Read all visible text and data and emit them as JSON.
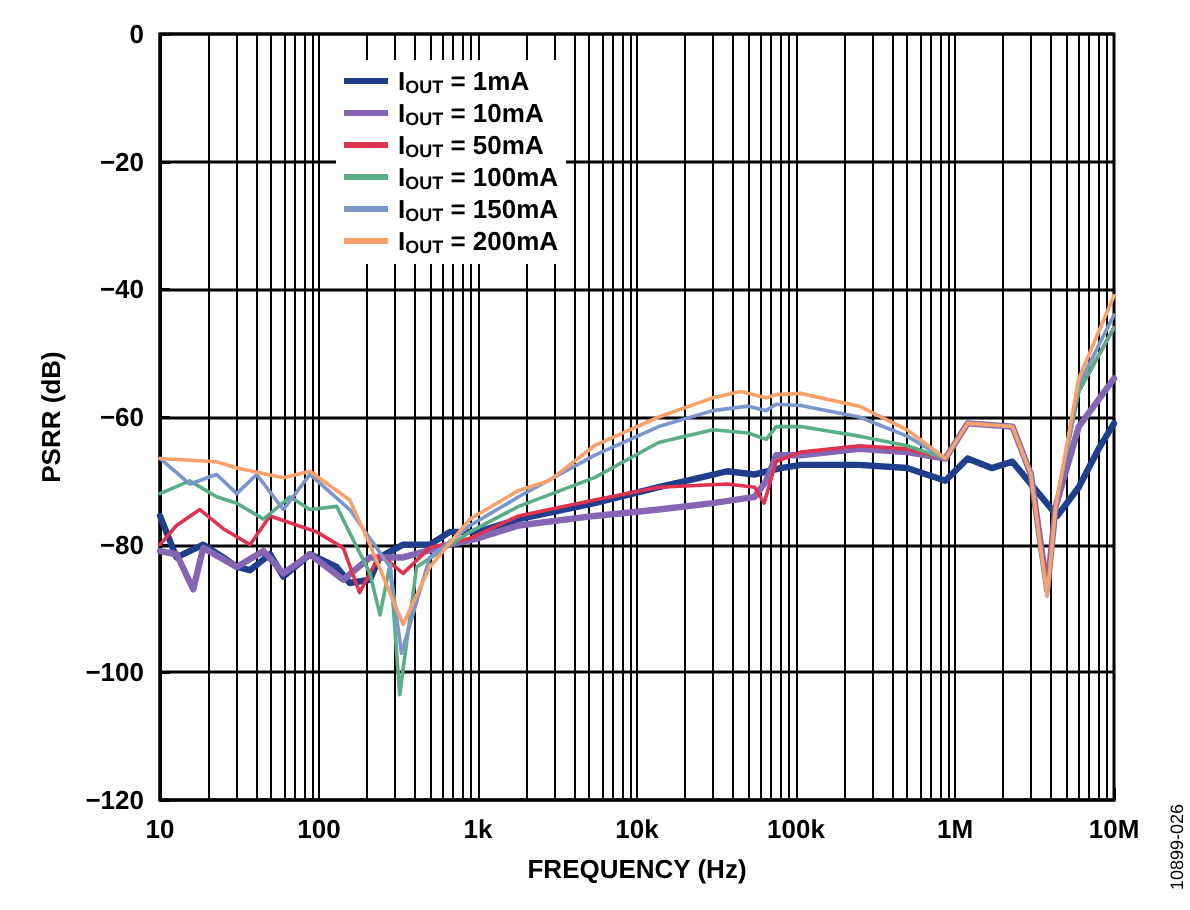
{
  "chart_data": {
    "type": "line",
    "xlabel": "FREQUENCY (Hz)",
    "ylabel": "PSRR (dB)",
    "xlim": [
      10,
      10000000
    ],
    "ylim": [
      -120,
      0
    ],
    "log": "x",
    "grid": true,
    "legend": "top left",
    "marker": "none",
    "line_style": "solid",
    "xticks": [
      {
        "value": 10,
        "label": "10"
      },
      {
        "value": 100,
        "label": "100"
      },
      {
        "value": 1000,
        "label": "1k"
      },
      {
        "value": 10000,
        "label": "10k"
      },
      {
        "value": 100000,
        "label": "100k"
      },
      {
        "value": 1000000,
        "label": "1M"
      },
      {
        "value": 10000000,
        "label": "10M"
      }
    ],
    "yticks": [
      {
        "value": 0,
        "label": "0"
      },
      {
        "value": -20,
        "label": "−20"
      },
      {
        "value": -40,
        "label": "−40"
      },
      {
        "value": -60,
        "label": "−60"
      },
      {
        "value": -80,
        "label": "−80"
      },
      {
        "value": -100,
        "label": "−100"
      },
      {
        "value": -120,
        "label": "−120"
      }
    ],
    "annotations": [
      "10899-026"
    ],
    "series": [
      {
        "name": "I$_{OUT}$ = 1mA",
        "color": "#1f3f8c",
        "x": [
          10,
          12.7,
          18.7,
          25,
          30.4,
          36.8,
          49.2,
          59.7,
          87.7,
          129,
          156,
          209,
          240,
          338,
          497,
          666,
          1000,
          1800,
          5400,
          13700,
          25000,
          37000,
          55000,
          80000,
          107000,
          250000,
          500000,
          870000,
          1200000,
          1700000,
          2300000,
          3000000,
          4400000,
          6000000,
          8000000,
          10000000
        ],
        "values": [
          -75.5,
          -82,
          -80,
          -82,
          -83.5,
          -84,
          -81.5,
          -85,
          -81.5,
          -83.5,
          -86,
          -85.5,
          -82,
          -80,
          -80,
          -78,
          -78,
          -76,
          -73.5,
          -71,
          -69.5,
          -68.5,
          -69,
          -68,
          -67.5,
          -67.5,
          -68,
          -70,
          -66.5,
          -68,
          -67,
          -70.5,
          -75.5,
          -71,
          -65,
          -61
        ]
      },
      {
        "name": "I$_{OUT}$ = 10mA",
        "color": "#8466b5",
        "x": [
          10,
          12.7,
          16.2,
          18.7,
          30.4,
          44.8,
          59.7,
          87.7,
          142,
          209,
          338,
          666,
          1000,
          1800,
          5400,
          13700,
          30000,
          55000,
          65000,
          75000,
          107000,
          250000,
          500000,
          870000,
          1200000,
          2300000,
          3000000,
          3800000,
          4300000,
          6000000,
          10000000
        ],
        "values": [
          -81,
          -81.5,
          -87,
          -80.5,
          -83.5,
          -81,
          -84.5,
          -81.5,
          -85.5,
          -82,
          -82,
          -80,
          -79,
          -77,
          -75.5,
          -74.5,
          -73.5,
          -72.5,
          -70,
          -66,
          -66,
          -65,
          -65.5,
          -66.5,
          -61,
          -61.5,
          -69,
          -87,
          -74,
          -61.5,
          -54
        ]
      },
      {
        "name": "I$_{OUT}$ = 50mA",
        "color": "#e0334f",
        "x": [
          10,
          12.7,
          17.8,
          25,
          36.8,
          49.2,
          96.5,
          142,
          180,
          242,
          338,
          497,
          890,
          1800,
          5400,
          13700,
          37000,
          55000,
          63000,
          75000,
          107000,
          250000,
          500000,
          870000,
          1200000,
          2300000,
          3000000,
          3800000,
          4300000,
          6000000,
          10000000
        ],
        "values": [
          -80,
          -77,
          -74.5,
          -77.5,
          -80,
          -75.5,
          -78,
          -80.5,
          -87.5,
          -81.5,
          -84.5,
          -80.5,
          -79,
          -75.5,
          -73,
          -71,
          -70.5,
          -71,
          -73.5,
          -67,
          -65.5,
          -64.5,
          -65,
          -66.5,
          -61,
          -61.5,
          -69,
          -87,
          -74,
          -56,
          -46
        ]
      },
      {
        "name": "I$_{OUT}$ = 100mA",
        "color": "#5aae86",
        "x": [
          10,
          15.4,
          22.7,
          30.4,
          44.8,
          65.7,
          87.7,
          129,
          209,
          242,
          280,
          322,
          411,
          890,
          1800,
          5400,
          13700,
          30000,
          50000,
          65000,
          75000,
          107000,
          250000,
          500000,
          870000,
          1200000,
          2300000,
          3000000,
          3800000,
          4300000,
          6000000,
          10000000
        ],
        "values": [
          -72,
          -70,
          -72.5,
          -73.5,
          -76,
          -72.5,
          -74.5,
          -74,
          -84.5,
          -91,
          -83,
          -103.5,
          -83.5,
          -78,
          -74,
          -69.5,
          -64,
          -62,
          -62.5,
          -63.5,
          -61.5,
          -61.5,
          -63,
          -64.5,
          -66.5,
          -61,
          -61.5,
          -69,
          -88,
          -74,
          -56,
          -46
        ]
      },
      {
        "name": "I$_{OUT}$ = 150mA",
        "color": "#7b96cc",
        "x": [
          10,
          15.4,
          22.7,
          30.4,
          40.5,
          59.7,
          87.7,
          156,
          280,
          330,
          497,
          890,
          1800,
          5400,
          13700,
          30000,
          50000,
          65000,
          75000,
          107000,
          250000,
          500000,
          870000,
          1200000,
          2300000,
          3000000,
          3800000,
          4300000,
          6000000,
          10000000
        ],
        "values": [
          -66.5,
          -70.5,
          -69,
          -72,
          -69,
          -74.5,
          -69,
          -74.5,
          -83.5,
          -97,
          -82,
          -77,
          -72.5,
          -66,
          -61.5,
          -59,
          -58.3,
          -59,
          -58,
          -58.2,
          -60,
          -63,
          -66.5,
          -61,
          -61.5,
          -69,
          -88,
          -74,
          -55,
          -44
        ]
      },
      {
        "name": "I$_{OUT}$ = 200mA",
        "color": "#f9a06b",
        "x": [
          10,
          22.7,
          30.4,
          59.7,
          87.7,
          156,
          209,
          338,
          497,
          890,
          1800,
          2800,
          5400,
          13700,
          30000,
          45000,
          65000,
          75000,
          107000,
          250000,
          500000,
          870000,
          1200000,
          2300000,
          3000000,
          3800000,
          4300000,
          6000000,
          10000000
        ],
        "values": [
          -66.5,
          -67,
          -68,
          -69.5,
          -68.5,
          -73,
          -80,
          -92.5,
          -83.5,
          -76,
          -71.5,
          -70,
          -64.5,
          -60,
          -57,
          -56,
          -57,
          -56.5,
          -56.3,
          -58.3,
          -62,
          -66.5,
          -61,
          -61.5,
          -69,
          -88,
          -74,
          -54,
          -41
        ]
      }
    ]
  }
}
